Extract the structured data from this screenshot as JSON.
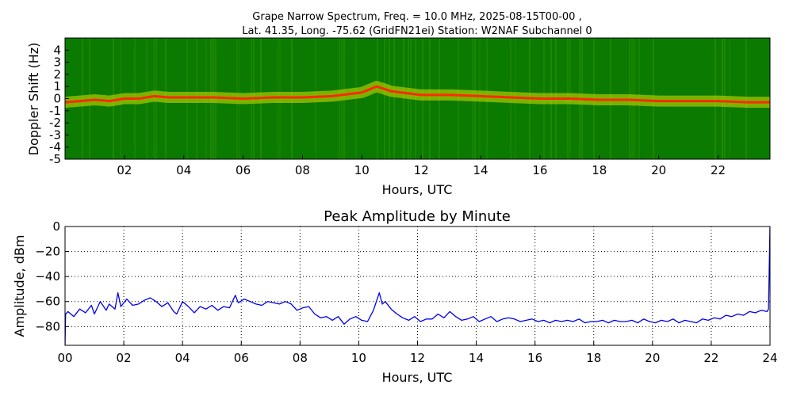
{
  "chart_data": [
    {
      "type": "heatmap",
      "title_line1": "Grape Narrow Spectrum, Freq. = 10.0 MHz, 2025-08-15T00-00 ,",
      "title_line2": "Lat.  41.35, Long. -75.62 (GridFN21ei) Station: W2NAF Subchannel 0",
      "xlabel": "Hours, UTC",
      "ylabel": "Doppler Shift (Hz)",
      "x_ticks": [
        "02",
        "04",
        "06",
        "08",
        "10",
        "12",
        "14",
        "16",
        "18",
        "20",
        "22"
      ],
      "x_tick_values": [
        2,
        4,
        6,
        8,
        10,
        12,
        14,
        16,
        18,
        20,
        22
      ],
      "y_ticks": [
        "4",
        "3",
        "2",
        "1",
        "0",
        "-1",
        "-2",
        "-3",
        "-4",
        "-5"
      ],
      "y_tick_values": [
        4,
        3,
        2,
        1,
        0,
        -1,
        -2,
        -3,
        -4,
        -5
      ],
      "xlim": [
        0,
        23.75
      ],
      "ylim": [
        -5,
        5
      ],
      "colors": {
        "background": "#0a7a00",
        "low": "#2f9400",
        "mid": "#d8e000",
        "high": "#ff2a00"
      },
      "trace_hours": [
        0,
        0.5,
        1,
        1.5,
        2,
        2.5,
        3,
        3.5,
        4,
        5,
        6,
        7,
        8,
        9,
        10,
        10.5,
        11,
        12,
        13,
        14,
        15,
        16,
        17,
        18,
        19,
        20,
        21,
        22,
        23,
        23.75
      ],
      "trace_hz": [
        -0.3,
        -0.2,
        -0.1,
        -0.2,
        0.0,
        0.0,
        0.2,
        0.1,
        0.1,
        0.1,
        0.0,
        0.1,
        0.1,
        0.2,
        0.5,
        1.0,
        0.6,
        0.3,
        0.3,
        0.2,
        0.1,
        0.0,
        0.0,
        -0.1,
        -0.1,
        -0.2,
        -0.2,
        -0.2,
        -0.3,
        -0.3
      ]
    },
    {
      "type": "line",
      "title": "Peak Amplitude by Minute",
      "xlabel": "Hours, UTC",
      "ylabel": "Amplitude, dBm",
      "x_ticks": [
        "00",
        "02",
        "04",
        "06",
        "08",
        "10",
        "12",
        "14",
        "16",
        "18",
        "20",
        "22",
        "24"
      ],
      "x_tick_values": [
        0,
        2,
        4,
        6,
        8,
        10,
        12,
        14,
        16,
        18,
        20,
        22,
        24
      ],
      "y_ticks": [
        "0",
        "−20",
        "−40",
        "−60",
        "−80"
      ],
      "y_tick_values": [
        0,
        -20,
        -40,
        -60,
        -80
      ],
      "xlim": [
        0,
        24
      ],
      "ylim": [
        -95,
        0
      ],
      "grid": true,
      "line_color": "#0000ee",
      "series": [
        {
          "x": [
            0.0,
            0.02,
            0.1,
            0.3,
            0.5,
            0.7,
            0.9,
            1.0,
            1.2,
            1.4,
            1.5,
            1.7,
            1.8,
            1.9,
            2.1,
            2.3,
            2.5,
            2.7,
            2.9,
            3.1,
            3.3,
            3.5,
            3.7,
            3.8,
            4.0,
            4.2,
            4.4,
            4.6,
            4.8,
            5.0,
            5.2,
            5.4,
            5.6,
            5.8,
            5.9,
            6.1,
            6.3,
            6.5,
            6.7,
            6.9,
            7.1,
            7.3,
            7.5,
            7.7,
            7.9,
            8.1,
            8.3,
            8.5,
            8.7,
            8.9,
            9.1,
            9.3,
            9.5,
            9.7,
            9.9,
            10.1,
            10.3,
            10.5,
            10.7,
            10.8,
            10.9,
            11.1,
            11.3,
            11.5,
            11.7,
            11.9,
            12.1,
            12.3,
            12.5,
            12.7,
            12.9,
            13.1,
            13.3,
            13.5,
            13.7,
            13.9,
            14.1,
            14.3,
            14.5,
            14.7,
            14.9,
            15.1,
            15.3,
            15.5,
            15.7,
            15.9,
            16.1,
            16.3,
            16.5,
            16.7,
            16.9,
            17.1,
            17.3,
            17.5,
            17.7,
            17.9,
            18.1,
            18.3,
            18.5,
            18.7,
            18.9,
            19.1,
            19.3,
            19.5,
            19.7,
            19.9,
            20.1,
            20.3,
            20.5,
            20.7,
            20.9,
            21.1,
            21.3,
            21.5,
            21.7,
            21.9,
            22.1,
            22.3,
            22.5,
            22.7,
            22.9,
            23.1,
            23.3,
            23.5,
            23.7,
            23.9,
            23.95,
            24.0
          ],
          "y": [
            -95,
            -70,
            -68,
            -72,
            -66,
            -69,
            -63,
            -70,
            -60,
            -67,
            -62,
            -66,
            -53,
            -64,
            -58,
            -63,
            -62,
            -59,
            -57,
            -60,
            -64,
            -61,
            -68,
            -70,
            -60,
            -64,
            -69,
            -64,
            -66,
            -63,
            -67,
            -64,
            -65,
            -55,
            -61,
            -58,
            -60,
            -62,
            -63,
            -60,
            -61,
            -62,
            -60,
            -62,
            -67,
            -65,
            -64,
            -70,
            -73,
            -72,
            -75,
            -72,
            -78,
            -74,
            -72,
            -75,
            -76,
            -67,
            -53,
            -62,
            -60,
            -66,
            -70,
            -73,
            -75,
            -72,
            -76,
            -74,
            -74,
            -70,
            -73,
            -68,
            -72,
            -75,
            -74,
            -72,
            -76,
            -74,
            -72,
            -76,
            -74,
            -73,
            -74,
            -76,
            -75,
            -74,
            -76,
            -75,
            -77,
            -75,
            -76,
            -75,
            -76,
            -74,
            -77,
            -76,
            -76,
            -75,
            -77,
            -75,
            -76,
            -76,
            -75,
            -77,
            -74,
            -76,
            -77,
            -75,
            -76,
            -74,
            -77,
            -75,
            -76,
            -77,
            -74,
            -75,
            -73,
            -74,
            -71,
            -72,
            -70,
            -71,
            -68,
            -69,
            -67,
            -68,
            -66,
            0
          ]
        }
      ]
    }
  ]
}
